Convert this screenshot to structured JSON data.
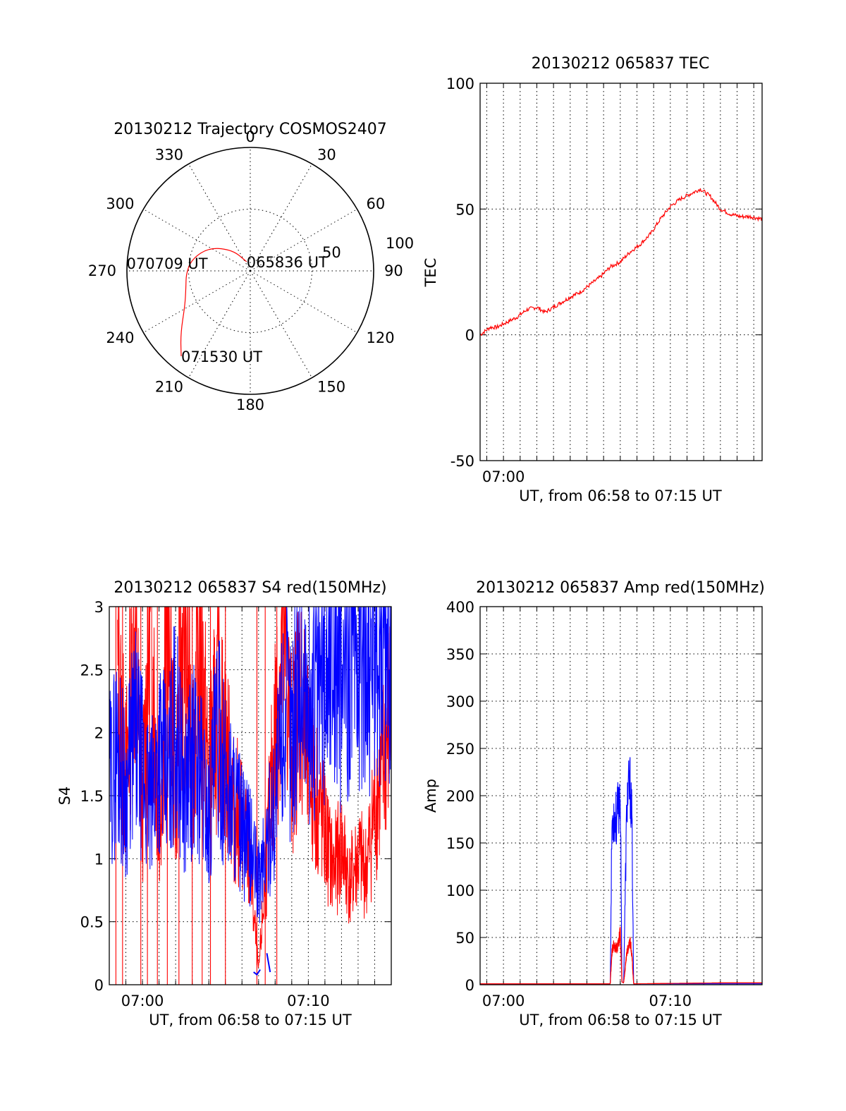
{
  "chart_data": [
    {
      "type": "polar",
      "title": "20130212 Trajectory COSMOS2407",
      "angle_labels": [
        "0",
        "30",
        "60",
        "90",
        "120",
        "150",
        "180",
        "210",
        "240",
        "270",
        "300",
        "330"
      ],
      "radius_labels": [
        "50",
        "100"
      ],
      "series": [
        {
          "color": "#ff0000",
          "points": [
            {
              "az": 338,
              "r": 8
            },
            {
              "az": 320,
              "r": 22
            },
            {
              "az": 300,
              "r": 38
            },
            {
              "az": 282,
              "r": 48
            },
            {
              "az": 268,
              "r": 52
            },
            {
              "az": 255,
              "r": 54
            },
            {
              "az": 242,
              "r": 60
            },
            {
              "az": 228,
              "r": 76
            },
            {
              "az": 219,
              "r": 89
            }
          ]
        }
      ],
      "annotations": [
        {
          "label": "065836 UT",
          "az": 338,
          "r": 8
        },
        {
          "label": "070709 UT",
          "az": 272,
          "r": 50
        },
        {
          "label": "071530 UT",
          "az": 219,
          "r": 89
        }
      ]
    },
    {
      "type": "line",
      "title": "20130212 065837 TEC",
      "xlabel": "UT, from 06:58 to 07:15 UT",
      "ylabel": "TEC",
      "xlim": [
        418.6,
        435.5
      ],
      "ylim": [
        -50,
        100
      ],
      "yticks": [
        -50,
        0,
        50,
        100
      ],
      "xticks": [
        {
          "value": 420,
          "label": "07:00"
        }
      ],
      "grid": true,
      "series": [
        {
          "color": "#ff0000",
          "x": [
            418.6,
            419.2,
            419.6,
            420.2,
            420.8,
            421.4,
            422.0,
            422.5,
            423.0,
            423.5,
            424.0,
            424.6,
            425.2,
            425.8,
            426.4,
            427.0,
            427.6,
            428.2,
            428.8,
            429.4,
            430.0,
            430.6,
            431.2,
            431.8,
            432.4,
            433.0,
            433.6,
            434.2,
            434.8,
            435.5
          ],
          "y": [
            0,
            3,
            3,
            5,
            7,
            10,
            11,
            9,
            11,
            13,
            15,
            17,
            20,
            23,
            27,
            29,
            33,
            36,
            40,
            46,
            51,
            54,
            56,
            58,
            55,
            50,
            48,
            47,
            47,
            46
          ]
        }
      ]
    },
    {
      "type": "line",
      "title": "20130212 065837 S4 red(150MHz)",
      "xlabel": "UT, from 06:58 to 07:15 UT",
      "ylabel": "S4",
      "xlim": [
        418.0,
        435.0
      ],
      "ylim": [
        0,
        3
      ],
      "yticks": [
        0,
        0.5,
        1,
        1.5,
        2,
        2.5,
        3
      ],
      "ytick_labels": [
        "0",
        "0.5",
        "1",
        "1.5",
        "2",
        "2.5",
        "3"
      ],
      "xticks": [
        {
          "value": 420,
          "label": "07:00"
        },
        {
          "value": 430,
          "label": "07:10"
        }
      ],
      "grid": true,
      "series": [
        {
          "color": "#ff0000",
          "x": [
            418.5,
            419.0,
            419.5,
            420.0,
            420.5,
            421.0,
            421.5,
            422.0,
            422.5,
            423.0,
            423.5,
            424.0,
            424.5,
            425.0,
            425.5,
            426.0,
            426.5,
            427.0,
            427.5,
            428.0,
            428.5,
            429.0,
            429.5,
            430.0,
            430.5,
            431.0,
            431.5,
            432.0,
            432.5,
            433.0,
            433.5,
            434.0,
            434.5,
            435.0
          ],
          "y": [
            2.4,
            1.6,
            2.8,
            1.4,
            3.0,
            1.2,
            2.9,
            1.5,
            3.0,
            1.8,
            2.7,
            1.6,
            2.2,
            1.9,
            1.4,
            1.3,
            0.9,
            0.1,
            1.0,
            2.0,
            2.8,
            1.8,
            2.4,
            1.7,
            1.5,
            1.2,
            0.9,
            1.1,
            0.8,
            1.0,
            0.9,
            1.4,
            1.7,
            2.2
          ],
          "spikes_to_zero": [
            418.4,
            418.8,
            419.9,
            420.3,
            420.9,
            421.5,
            422.2,
            423.0,
            423.6,
            424.1,
            425.0,
            426.9,
            427.4,
            428.1
          ]
        },
        {
          "color": "#0000ff",
          "x": [
            418.0,
            418.5,
            419.0,
            419.5,
            420.0,
            420.5,
            421.0,
            421.5,
            422.0,
            422.5,
            423.0,
            423.5,
            424.0,
            424.5,
            425.0,
            425.5,
            426.0,
            426.5,
            427.0,
            427.5,
            428.0,
            428.5,
            429.0,
            429.5,
            430.0,
            430.5,
            431.0,
            431.5,
            432.0,
            432.5,
            433.0,
            433.5,
            434.0,
            434.5,
            435.0
          ],
          "y": [
            1.6,
            1.9,
            1.5,
            2.0,
            1.7,
            1.4,
            1.9,
            1.6,
            2.1,
            1.5,
            1.8,
            1.7,
            1.3,
            2.0,
            1.6,
            1.5,
            1.2,
            1.1,
            0.8,
            1.1,
            1.5,
            2.2,
            2.0,
            2.6,
            2.1,
            2.3,
            2.5,
            2.9,
            2.4,
            2.7,
            2.6,
            2.8,
            2.5,
            2.9,
            2.6
          ],
          "segments_low": [
            {
              "x": [
                426.7,
                426.9,
                427.1
              ],
              "y": [
                0.1,
                0.08,
                0.12
              ]
            },
            {
              "x": [
                427.5,
                427.7
              ],
              "y": [
                0.25,
                0.1
              ]
            }
          ]
        }
      ]
    },
    {
      "type": "line",
      "title": "20130212 065837 Amp red(150MHz)",
      "xlabel": "UT, from 06:58 to 07:15 UT",
      "ylabel": "Amp",
      "xlim": [
        418.6,
        435.5
      ],
      "ylim": [
        0,
        400
      ],
      "yticks": [
        0,
        50,
        100,
        150,
        200,
        250,
        300,
        350,
        400
      ],
      "xticks": [
        {
          "value": 420,
          "label": "07:00"
        },
        {
          "value": 430,
          "label": "07:10"
        }
      ],
      "grid": true,
      "series": [
        {
          "color": "#ff0000",
          "x": [
            418.6,
            426.4,
            426.5,
            426.6,
            426.8,
            427.0,
            427.1,
            427.2,
            427.4,
            427.6,
            427.7,
            427.8,
            433.0,
            435.5
          ],
          "y": [
            1,
            1,
            35,
            42,
            38,
            55,
            3,
            2,
            35,
            45,
            30,
            1,
            2,
            2
          ]
        },
        {
          "color": "#0000ff",
          "x": [
            418.6,
            426.4,
            426.5,
            426.6,
            426.8,
            427.0,
            427.1,
            427.2,
            427.4,
            427.6,
            427.7,
            427.8,
            435.5
          ],
          "y": [
            1,
            1,
            170,
            180,
            175,
            205,
            3,
            2,
            195,
            210,
            170,
            1,
            1
          ]
        }
      ]
    }
  ]
}
